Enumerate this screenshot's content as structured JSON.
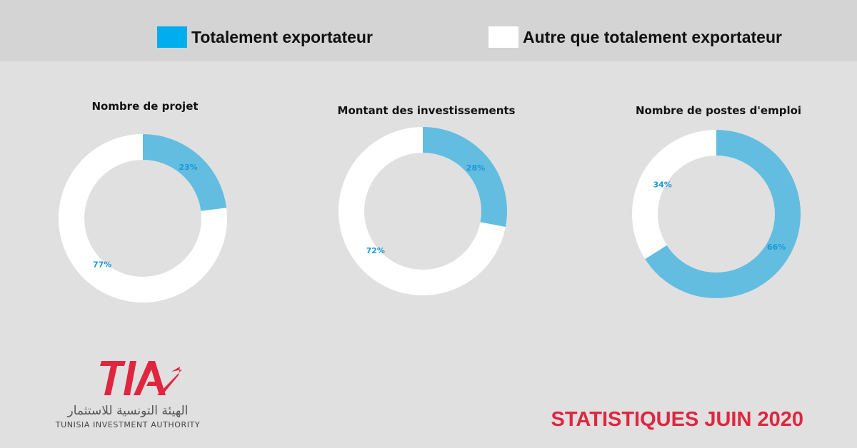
{
  "legend": {
    "items": [
      {
        "label": "Totalement exportateur",
        "color": "#00aeef"
      },
      {
        "label": "Autre que totalement exportateur",
        "color": "#ffffff"
      }
    ]
  },
  "colors": {
    "segment_export": "#62bde0",
    "segment_other": "#ffffff",
    "label_text": "#1a9ad6",
    "brand_red": "#e0263f"
  },
  "chart_data": [
    {
      "type": "pie",
      "title": "Nombre de projet",
      "series": [
        {
          "name": "Totalement exportateur",
          "value": 23,
          "label": "23%"
        },
        {
          "name": "Autre que totalement exportateur",
          "value": 77,
          "label": "77%"
        }
      ]
    },
    {
      "type": "pie",
      "title": "Montant des investissements",
      "series": [
        {
          "name": "Totalement exportateur",
          "value": 28,
          "label": "28%"
        },
        {
          "name": "Autre que totalement exportateur",
          "value": 72,
          "label": "72%"
        }
      ]
    },
    {
      "type": "pie",
      "title": "Nombre de postes d'emploi",
      "series": [
        {
          "name": "Totalement exportateur",
          "value": 66,
          "label": "66%"
        },
        {
          "name": "Autre que totalement exportateur",
          "value": 34,
          "label": "34%"
        }
      ]
    }
  ],
  "logo": {
    "mark": "TIA",
    "arabic": "الهيئة التونسية للاستثمار",
    "english": "TUNISIA INVESTMENT AUTHORITY"
  },
  "footer": {
    "title": "STATISTIQUES JUIN 2020"
  }
}
